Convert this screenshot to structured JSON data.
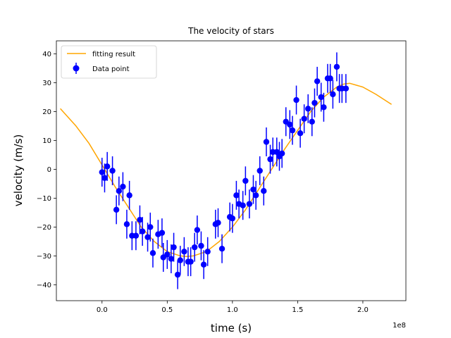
{
  "chart_data": {
    "type": "scatter",
    "title": "The velocity of stars",
    "xlabel": "time (s)",
    "ylabel": "velocity (m/s)",
    "x_offset_label": "1e8",
    "xlim": [
      -0.35,
      2.33
    ],
    "ylim": [
      -45.5,
      44.5
    ],
    "xticks": [
      0.0,
      0.5,
      1.0,
      1.5,
      2.0
    ],
    "xtick_labels": [
      "0.0",
      "0.5",
      "1.0",
      "1.5",
      "2.0"
    ],
    "yticks": [
      -40,
      -30,
      -20,
      -10,
      0,
      10,
      20,
      30,
      40
    ],
    "ytick_labels": [
      "−40",
      "−30",
      "−20",
      "−10",
      "0",
      "10",
      "20",
      "30",
      "40"
    ],
    "grid": false,
    "legend_position": "top-left",
    "series": [
      {
        "name": "fitting result",
        "kind": "line",
        "color": "#ffa500",
        "x": [
          -0.32,
          -0.2,
          -0.1,
          0.0,
          0.1,
          0.2,
          0.3,
          0.4,
          0.5,
          0.6,
          0.65,
          0.7,
          0.8,
          0.9,
          1.0,
          1.1,
          1.2,
          1.3,
          1.4,
          1.5,
          1.6,
          1.7,
          1.8,
          1.85,
          1.9,
          2.0,
          2.1,
          2.22
        ],
        "y": [
          21,
          15,
          9,
          1.5,
          -6,
          -13,
          -20,
          -25,
          -28.5,
          -30,
          -30.2,
          -30,
          -28.5,
          -25,
          -20,
          -14,
          -7,
          0,
          7,
          13.5,
          20,
          25,
          28.5,
          29.5,
          29.8,
          28.5,
          26,
          22.5
        ]
      },
      {
        "name": "Data point",
        "kind": "errorbar",
        "color": "#0000ff",
        "x": [
          0.0,
          0.02,
          0.04,
          0.08,
          0.11,
          0.13,
          0.16,
          0.19,
          0.21,
          0.23,
          0.26,
          0.29,
          0.31,
          0.35,
          0.37,
          0.39,
          0.43,
          0.46,
          0.47,
          0.5,
          0.53,
          0.55,
          0.58,
          0.6,
          0.63,
          0.66,
          0.68,
          0.71,
          0.73,
          0.76,
          0.78,
          0.81,
          0.87,
          0.89,
          0.92,
          0.98,
          1.0,
          1.03,
          1.05,
          1.08,
          1.1,
          1.13,
          1.16,
          1.18,
          1.21,
          1.24,
          1.26,
          1.29,
          1.31,
          1.34,
          1.36,
          1.38,
          1.41,
          1.44,
          1.46,
          1.49,
          1.52,
          1.55,
          1.58,
          1.61,
          1.63,
          1.65,
          1.68,
          1.7,
          1.73,
          1.75,
          1.77,
          1.8,
          1.82,
          1.84,
          1.87
        ],
        "y": [
          -1,
          -3,
          1,
          -0.5,
          -14,
          -7.5,
          -6,
          -19,
          -9,
          -23,
          -23,
          -17.5,
          -21.5,
          -23.5,
          -20,
          -29,
          -22.5,
          -22,
          -30.5,
          -29.5,
          -31,
          -27,
          -36.5,
          -31.5,
          -28.5,
          -32,
          -32,
          -27,
          -21,
          -26.5,
          -33,
          -28.5,
          -19,
          -18.5,
          -27.5,
          -16.5,
          -17,
          -9,
          -12,
          -12.5,
          -4,
          -12,
          -7,
          -9,
          -0.5,
          -7.5,
          9.5,
          3.5,
          6,
          6,
          4.5,
          5.5,
          16.5,
          15.5,
          13.5,
          24,
          12.5,
          17.5,
          21,
          16.5,
          23,
          30.5,
          25,
          21.5,
          31.5,
          31.5,
          26,
          35.5,
          28,
          28,
          28
        ],
        "yerr": [
          5,
          5,
          5,
          5,
          5,
          5,
          5,
          5,
          5,
          5,
          5,
          5,
          5,
          5,
          5,
          5,
          5,
          5,
          5,
          5,
          5,
          5,
          5,
          5,
          5,
          5,
          5,
          5,
          5,
          5,
          5,
          5,
          5,
          5,
          5,
          5,
          5,
          5,
          5,
          5,
          5,
          5,
          5,
          5,
          5,
          5,
          5,
          5,
          5,
          5,
          5,
          5,
          5,
          5,
          5,
          5,
          5,
          5,
          5,
          5,
          5,
          5,
          5,
          5,
          5,
          5,
          5,
          5,
          5,
          5,
          5
        ]
      }
    ]
  }
}
